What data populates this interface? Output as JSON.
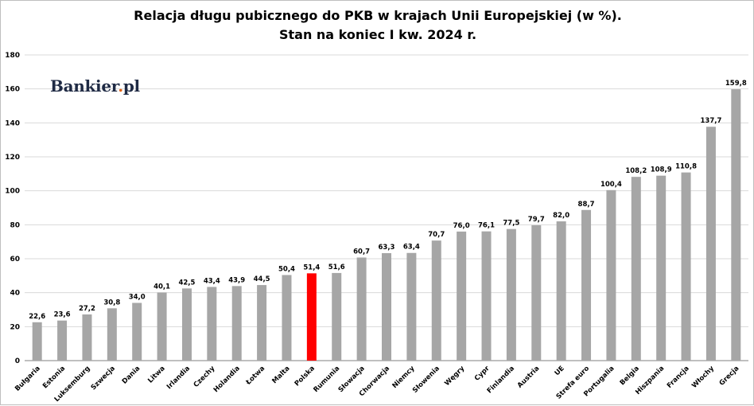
{
  "chart_data": {
    "type": "bar",
    "title": "Relacja długu pubicznego do PKB w krajach Unii Europejskiej (w %).",
    "subtitle": "Stan na koniec I kw. 2024 r.",
    "xlabel": "",
    "ylabel": "",
    "ylim": [
      0,
      180
    ],
    "yticks": [
      0,
      20,
      40,
      60,
      80,
      100,
      120,
      140,
      160,
      180
    ],
    "grid": true,
    "legend": "none",
    "bar_color": "#a6a6a6",
    "highlight_color": "#ff0000",
    "highlight_category": "Polska",
    "categories": [
      "Bułgaria",
      "Estonia",
      "Luksemburg",
      "Szwecja",
      "Dania",
      "Litwa",
      "Irlandia",
      "Czechy",
      "Holandia",
      "Łotwa",
      "Malta",
      "Polska",
      "Rumunia",
      "Słowacja",
      "Chorwacja",
      "Niemcy",
      "Słowenia",
      "Węgry",
      "Cypr",
      "Finlandia",
      "Austria",
      "UE",
      "Strefa euro",
      "Portugalia",
      "Belgia",
      "Hiszpania",
      "Francja",
      "Włochy",
      "Grecja"
    ],
    "values": [
      22.6,
      23.6,
      27.2,
      30.8,
      34.0,
      40.1,
      42.5,
      43.4,
      43.9,
      44.5,
      50.4,
      51.4,
      51.6,
      60.7,
      63.3,
      63.4,
      70.7,
      76.0,
      76.1,
      77.5,
      79.7,
      82.0,
      88.7,
      100.4,
      108.2,
      108.9,
      110.8,
      137.7,
      159.8
    ],
    "value_labels": [
      "22,6",
      "23,6",
      "27,2",
      "30,8",
      "34,0",
      "40,1",
      "42,5",
      "43,4",
      "43,9",
      "44,5",
      "50,4",
      "51,4",
      "51,6",
      "60,7",
      "63,3",
      "63,4",
      "70,7",
      "76,0",
      "76,1",
      "77,5",
      "79,7",
      "82,0",
      "88,7",
      "100,4",
      "108,2",
      "108,9",
      "110,8",
      "137,7",
      "159,8"
    ]
  },
  "logo": {
    "main": "Bankier",
    "dot": ".",
    "tail": "pl"
  }
}
